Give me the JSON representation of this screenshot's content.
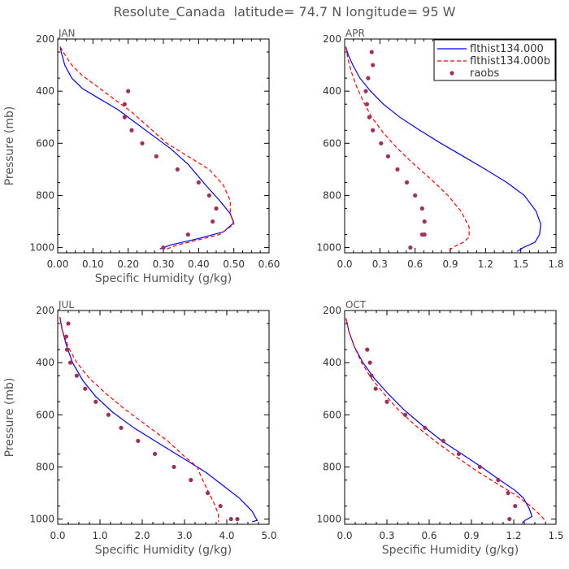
{
  "figure": {
    "title": "Resolute_Canada  latitude= 74.7 N longitude= 95 W"
  },
  "colors": {
    "model_a": "#0000ff",
    "model_b": "#ff0000",
    "raobs": "#a0305a"
  },
  "chart_data": [
    {
      "type": "line",
      "panel_label": "JAN",
      "xlabel": "Specific Humidity (g/kg)",
      "ylabel": "Pressure (mb)",
      "xlim": [
        0,
        0.6
      ],
      "ylim": [
        1020,
        200
      ],
      "y_inverted": true,
      "x_ticks": [
        "0.00",
        "0.10",
        "0.20",
        "0.30",
        "0.40",
        "0.50",
        "0.60"
      ],
      "x_tick_values": [
        0,
        0.1,
        0.2,
        0.3,
        0.4,
        0.5,
        0.6
      ],
      "y_ticks": [
        "200",
        "400",
        "600",
        "800",
        "1000"
      ],
      "y_tick_values": [
        200,
        400,
        600,
        800,
        1000
      ],
      "legend": false,
      "series": [
        {
          "name": "flthist134.000",
          "style": "solid",
          "x": [
            0.007,
            0.01,
            0.02,
            0.04,
            0.07,
            0.12,
            0.17,
            0.22,
            0.27,
            0.32,
            0.37,
            0.42,
            0.46,
            0.49,
            0.5,
            0.47,
            0.4,
            0.32,
            0.29
          ],
          "y": [
            230,
            250,
            300,
            350,
            390,
            430,
            470,
            520,
            570,
            620,
            680,
            760,
            820,
            870,
            905,
            940,
            965,
            990,
            1005
          ]
        },
        {
          "name": "flthist134.000b",
          "style": "dashed",
          "x": [
            0.007,
            0.02,
            0.04,
            0.07,
            0.11,
            0.16,
            0.21,
            0.26,
            0.31,
            0.37,
            0.43,
            0.47,
            0.49,
            0.49,
            0.5,
            0.46,
            0.4,
            0.34,
            0.31
          ],
          "y": [
            230,
            260,
            300,
            340,
            380,
            430,
            480,
            540,
            600,
            650,
            700,
            760,
            820,
            870,
            910,
            950,
            970,
            990,
            1005
          ]
        },
        {
          "name": "raobs",
          "style": "points",
          "x": [
            0.2,
            0.19,
            0.19,
            0.21,
            0.24,
            0.28,
            0.34,
            0.4,
            0.43,
            0.45,
            0.44,
            0.37,
            0.3
          ],
          "y": [
            400,
            450,
            500,
            550,
            600,
            650,
            700,
            750,
            800,
            850,
            900,
            950,
            1000
          ]
        }
      ]
    },
    {
      "type": "line",
      "panel_label": "APR",
      "xlabel": "",
      "ylabel": "",
      "xlim": [
        0,
        1.8
      ],
      "ylim": [
        1020,
        200
      ],
      "y_inverted": true,
      "x_ticks": [
        "0.0",
        "0.3",
        "0.6",
        "0.9",
        "1.2",
        "1.5",
        "1.8"
      ],
      "x_tick_values": [
        0,
        0.3,
        0.6,
        0.9,
        1.2,
        1.5,
        1.8
      ],
      "y_ticks": [
        "200",
        "400",
        "600",
        "800",
        "1000"
      ],
      "y_tick_values": [
        200,
        400,
        600,
        800,
        1000
      ],
      "legend": true,
      "legend_position": "top-right",
      "series": [
        {
          "name": "flthist134.000",
          "style": "solid",
          "x": [
            0.01,
            0.03,
            0.07,
            0.13,
            0.22,
            0.33,
            0.47,
            0.64,
            0.82,
            1.01,
            1.2,
            1.38,
            1.53,
            1.63,
            1.67,
            1.66,
            1.62,
            1.52,
            1.47
          ],
          "y": [
            230,
            260,
            300,
            350,
            400,
            450,
            500,
            550,
            600,
            650,
            700,
            750,
            800,
            860,
            910,
            950,
            980,
            1000,
            1015
          ]
        },
        {
          "name": "flthist134.000b",
          "style": "dashed",
          "x": [
            0.01,
            0.03,
            0.06,
            0.1,
            0.16,
            0.23,
            0.33,
            0.45,
            0.59,
            0.74,
            0.88,
            0.99,
            1.06,
            1.06,
            1.01,
            0.94,
            0.89
          ],
          "y": [
            230,
            280,
            330,
            380,
            440,
            500,
            560,
            620,
            680,
            740,
            800,
            860,
            920,
            960,
            980,
            995,
            1010
          ]
        },
        {
          "name": "raobs",
          "style": "points",
          "x": [
            0.23,
            0.24,
            0.2,
            0.18,
            0.19,
            0.21,
            0.24,
            0.31,
            0.37,
            0.45,
            0.53,
            0.6,
            0.66,
            0.68,
            0.68,
            0.66,
            0.56
          ],
          "y": [
            250,
            300,
            350,
            400,
            450,
            500,
            550,
            600,
            650,
            700,
            750,
            800,
            850,
            900,
            950,
            950,
            1000
          ]
        }
      ]
    },
    {
      "type": "line",
      "panel_label": "JUL",
      "xlabel": "Specific Humidity (g/kg)",
      "ylabel": "Pressure (mb)",
      "xlim": [
        0,
        5
      ],
      "ylim": [
        1020,
        200
      ],
      "y_inverted": true,
      "x_ticks": [
        "0.0",
        "1.0",
        "2.0",
        "3.0",
        "4.0",
        "5.0"
      ],
      "x_tick_values": [
        0,
        1,
        2,
        3,
        4,
        5
      ],
      "y_ticks": [
        "200",
        "400",
        "600",
        "800",
        "1000"
      ],
      "y_tick_values": [
        200,
        400,
        600,
        800,
        1000
      ],
      "legend": false,
      "series": [
        {
          "name": "flthist134.000",
          "style": "solid",
          "x": [
            0.05,
            0.1,
            0.2,
            0.35,
            0.6,
            0.9,
            1.3,
            1.8,
            2.4,
            3.0,
            3.5,
            3.9,
            4.3,
            4.6,
            4.72,
            4.6
          ],
          "y": [
            225,
            270,
            330,
            400,
            470,
            530,
            590,
            650,
            710,
            770,
            820,
            870,
            920,
            970,
            1005,
            1010
          ]
        },
        {
          "name": "flthist134.000b",
          "style": "dashed",
          "x": [
            0.05,
            0.12,
            0.25,
            0.45,
            0.75,
            1.15,
            1.6,
            2.1,
            2.6,
            3.0,
            3.3,
            3.4,
            3.55,
            3.7,
            3.8,
            3.8
          ],
          "y": [
            225,
            280,
            340,
            400,
            460,
            520,
            580,
            640,
            700,
            760,
            800,
            840,
            890,
            940,
            980,
            1010
          ]
        },
        {
          "name": "raobs",
          "style": "points",
          "x": [
            0.25,
            0.2,
            0.22,
            0.3,
            0.45,
            0.65,
            0.9,
            1.2,
            1.5,
            1.9,
            2.3,
            2.75,
            3.15,
            3.55,
            3.85,
            4.1,
            4.25
          ],
          "y": [
            250,
            300,
            350,
            400,
            450,
            500,
            550,
            600,
            650,
            700,
            750,
            800,
            850,
            900,
            950,
            1000,
            1000
          ]
        }
      ]
    },
    {
      "type": "line",
      "panel_label": "OCT",
      "xlabel": "Specific Humidity (g/kg)",
      "ylabel": "",
      "xlim": [
        0,
        1.5
      ],
      "ylim": [
        1020,
        200
      ],
      "y_inverted": true,
      "x_ticks": [
        "0.0",
        "0.3",
        "0.6",
        "0.9",
        "1.2",
        "1.5"
      ],
      "x_tick_values": [
        0,
        0.3,
        0.6,
        0.9,
        1.2,
        1.5
      ],
      "y_ticks": [
        "200",
        "400",
        "600",
        "800",
        "1000"
      ],
      "y_tick_values": [
        200,
        400,
        600,
        800,
        1000
      ],
      "legend": false,
      "series": [
        {
          "name": "flthist134.000",
          "style": "solid",
          "x": [
            0.01,
            0.03,
            0.07,
            0.13,
            0.21,
            0.31,
            0.42,
            0.55,
            0.69,
            0.83,
            0.97,
            1.1,
            1.21,
            1.27,
            1.31,
            1.33,
            1.28,
            1.26
          ],
          "y": [
            230,
            280,
            340,
            400,
            460,
            520,
            580,
            640,
            700,
            750,
            800,
            850,
            890,
            920,
            960,
            990,
            1005,
            1015
          ]
        },
        {
          "name": "flthist134.000b",
          "style": "dashed",
          "x": [
            0.01,
            0.03,
            0.07,
            0.12,
            0.19,
            0.28,
            0.38,
            0.5,
            0.64,
            0.79,
            0.95,
            1.1,
            1.22,
            1.32,
            1.39,
            1.43
          ],
          "y": [
            230,
            280,
            340,
            400,
            460,
            520,
            580,
            640,
            700,
            760,
            820,
            870,
            910,
            950,
            985,
            1010
          ]
        },
        {
          "name": "raobs",
          "style": "points",
          "x": [
            0.16,
            0.18,
            0.19,
            0.22,
            0.3,
            0.43,
            0.57,
            0.7,
            0.81,
            0.96,
            1.09,
            1.16,
            1.21,
            1.17
          ],
          "y": [
            350,
            400,
            450,
            500,
            550,
            600,
            650,
            700,
            750,
            800,
            850,
            900,
            950,
            1000
          ]
        }
      ]
    }
  ]
}
